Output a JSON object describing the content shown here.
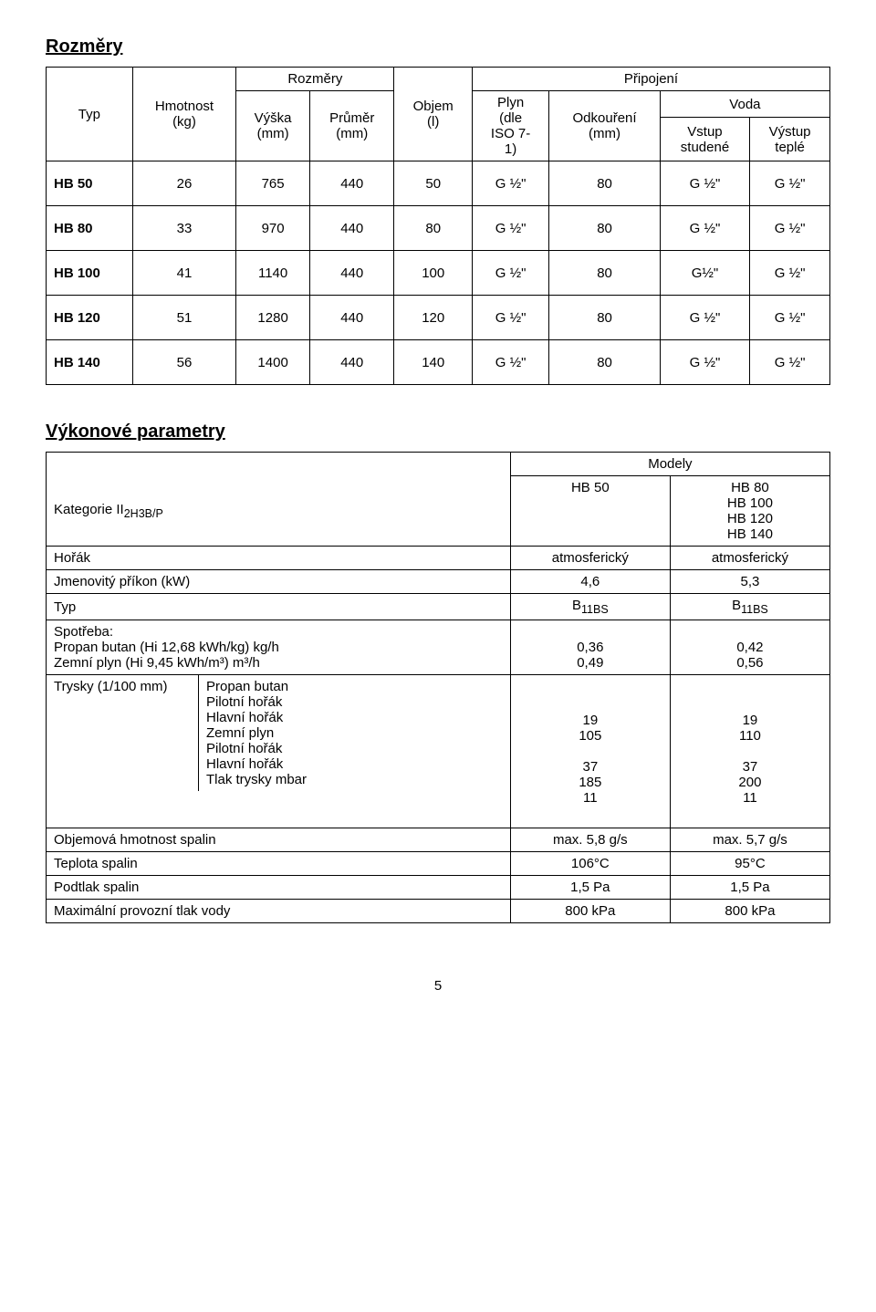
{
  "section1": {
    "title": "Rozměry",
    "headers": {
      "typ": "Typ",
      "hmotnost": "Hmotnost\n(kg)",
      "rozmery": "Rozměry",
      "vyska": "Výška\n(mm)",
      "prumer": "Průměr\n(mm)",
      "objem": "Objem\n(l)",
      "pripojeni": "Připojení",
      "plyn": "Plyn\n(dle\nISO 7-\n1)",
      "odkoureni": "Odkouření\n(mm)",
      "voda": "Voda",
      "vstup": "Vstup\nstudené",
      "vystup": "Výstup\nteplé"
    },
    "rows": [
      {
        "typ": "HB 50",
        "h": "26",
        "v": "765",
        "p": "440",
        "o": "50",
        "plyn": "G ½\"",
        "odk": "80",
        "vs": "G ½\"",
        "vy": "G ½\""
      },
      {
        "typ": "HB 80",
        "h": "33",
        "v": "970",
        "p": "440",
        "o": "80",
        "plyn": "G ½\"",
        "odk": "80",
        "vs": "G ½\"",
        "vy": "G ½\""
      },
      {
        "typ": "HB 100",
        "h": "41",
        "v": "1140",
        "p": "440",
        "o": "100",
        "plyn": "G ½\"",
        "odk": "80",
        "vs": "G½\"",
        "vy": "G ½\""
      },
      {
        "typ": "HB 120",
        "h": "51",
        "v": "1280",
        "p": "440",
        "o": "120",
        "plyn": "G ½\"",
        "odk": "80",
        "vs": "G ½\"",
        "vy": "G ½\""
      },
      {
        "typ": "HB 140",
        "h": "56",
        "v": "1400",
        "p": "440",
        "o": "140",
        "plyn": "G ½\"",
        "odk": "80",
        "vs": "G ½\"",
        "vy": "G ½\""
      }
    ]
  },
  "section2": {
    "title": "Výkonové parametry",
    "modely": "Modely",
    "kategorie_label": "Kategorie II",
    "kategorie_sub": "2H3B/P",
    "col1": "HB 50",
    "col2": "HB 80\nHB 100\nHB 120\nHB 140",
    "rows": [
      {
        "label": "Hořák",
        "c1": "atmosferický",
        "c2": "atmosferický"
      },
      {
        "label": "Jmenovitý příkon (kW)",
        "c1": "4,6",
        "c2": "5,3"
      },
      {
        "label": "Typ",
        "c1": "B",
        "c1sub": "11BS",
        "c2": "B",
        "c2sub": "11BS"
      },
      {
        "label": "Spotřeba:",
        "c1": "",
        "c2": ""
      },
      {
        "label": "Propan butan (Hi 12,68 kWh/kg) kg/h",
        "c1": "0,36",
        "c2": "0,42"
      },
      {
        "label": "Zemní plyn   (Hi 9,45 kWh/m³) m³/h",
        "c1": "0,49",
        "c2": "0,56"
      },
      {
        "label": "Trysky (1/100 mm)",
        "sub": "Propan butan",
        "c1": "",
        "c2": ""
      },
      {
        "label": "",
        "sub": "Pilotní hořák",
        "c1": "19",
        "c2": "19"
      },
      {
        "label": "",
        "sub": "Hlavní hořák",
        "c1": "105",
        "c2": "110"
      },
      {
        "label": "",
        "sub": "Zemní plyn",
        "c1": "",
        "c2": ""
      },
      {
        "label": "",
        "sub": "Pilotní hořák",
        "c1": "37",
        "c2": "37"
      },
      {
        "label": "",
        "sub": "Hlavní hořák",
        "c1": "185",
        "c2": "200"
      },
      {
        "label": "",
        "sub": "Tlak trysky  mbar",
        "c1": "11",
        "c2": "11"
      },
      {
        "label": "Objemová hmotnost spalin",
        "c1": "max. 5,8 g/s",
        "c2": "max. 5,7 g/s"
      },
      {
        "label": "Teplota spalin",
        "c1": "106°C",
        "c2": "95°C"
      },
      {
        "label": "Podtlak spalin",
        "c1": "1,5 Pa",
        "c2": "1,5 Pa"
      },
      {
        "label": "Maximální provozní tlak vody",
        "c1": "800 kPa",
        "c2": "800 kPa"
      }
    ]
  },
  "page": "5"
}
